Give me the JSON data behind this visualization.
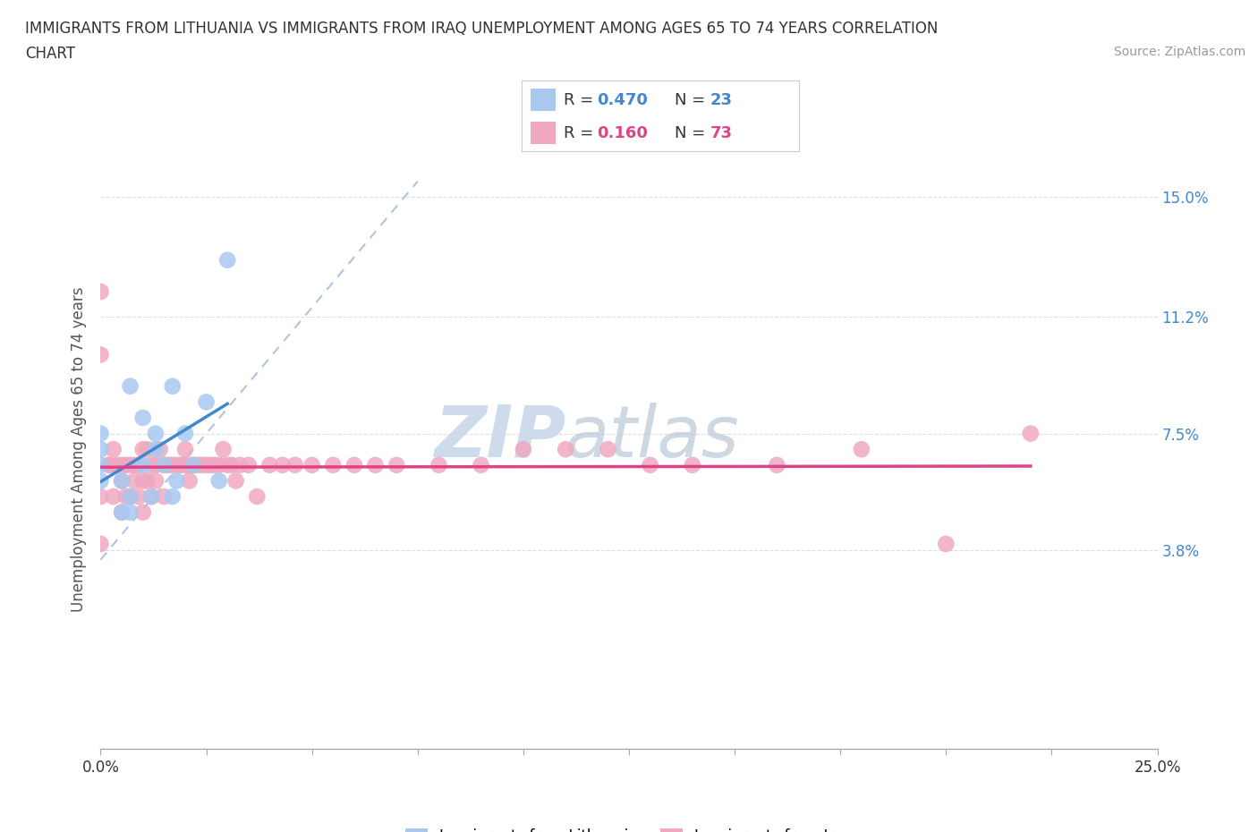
{
  "title_line1": "IMMIGRANTS FROM LITHUANIA VS IMMIGRANTS FROM IRAQ UNEMPLOYMENT AMONG AGES 65 TO 74 YEARS CORRELATION",
  "title_line2": "CHART",
  "source_text": "Source: ZipAtlas.com",
  "ylabel": "Unemployment Among Ages 65 to 74 years",
  "xlim": [
    0.0,
    0.25
  ],
  "ylim": [
    -0.025,
    0.165
  ],
  "y_tick_labels_right": [
    "3.8%",
    "7.5%",
    "11.2%",
    "15.0%"
  ],
  "y_tick_values_right": [
    0.038,
    0.075,
    0.112,
    0.15
  ],
  "R_lithuania": 0.47,
  "N_lithuania": 23,
  "R_iraq": 0.16,
  "N_iraq": 73,
  "color_lithuania": "#a8c8f0",
  "color_iraq": "#f0a8c0",
  "line_color_lithuania": "#4488cc",
  "line_color_iraq": "#dd4488",
  "diagonal_color": "#b0c4de",
  "watermark_color": "#d0dce8",
  "lithuania_points_x": [
    0.0,
    0.0,
    0.0,
    0.0,
    0.005,
    0.005,
    0.007,
    0.007,
    0.007,
    0.01,
    0.01,
    0.012,
    0.013,
    0.013,
    0.015,
    0.017,
    0.017,
    0.018,
    0.02,
    0.022,
    0.025,
    0.028,
    0.03
  ],
  "lithuania_points_y": [
    0.06,
    0.065,
    0.07,
    0.075,
    0.05,
    0.06,
    0.05,
    0.055,
    0.09,
    0.065,
    0.08,
    0.055,
    0.07,
    0.075,
    0.065,
    0.09,
    0.055,
    0.06,
    0.075,
    0.065,
    0.085,
    0.06,
    0.13
  ],
  "iraq_points_x": [
    0.0,
    0.0,
    0.0,
    0.0,
    0.002,
    0.002,
    0.003,
    0.003,
    0.004,
    0.005,
    0.005,
    0.005,
    0.006,
    0.006,
    0.007,
    0.007,
    0.008,
    0.008,
    0.009,
    0.009,
    0.01,
    0.01,
    0.01,
    0.011,
    0.011,
    0.012,
    0.012,
    0.013,
    0.013,
    0.014,
    0.015,
    0.015,
    0.016,
    0.017,
    0.018,
    0.019,
    0.02,
    0.02,
    0.021,
    0.021,
    0.022,
    0.023,
    0.024,
    0.025,
    0.026,
    0.027,
    0.028,
    0.029,
    0.03,
    0.031,
    0.032,
    0.033,
    0.035,
    0.037,
    0.04,
    0.043,
    0.046,
    0.05,
    0.055,
    0.06,
    0.065,
    0.07,
    0.08,
    0.09,
    0.1,
    0.11,
    0.12,
    0.13,
    0.14,
    0.16,
    0.18,
    0.2,
    0.22
  ],
  "iraq_points_y": [
    0.1,
    0.12,
    0.055,
    0.04,
    0.065,
    0.065,
    0.07,
    0.055,
    0.065,
    0.065,
    0.06,
    0.05,
    0.065,
    0.055,
    0.065,
    0.055,
    0.065,
    0.06,
    0.065,
    0.055,
    0.07,
    0.06,
    0.05,
    0.07,
    0.06,
    0.065,
    0.055,
    0.065,
    0.06,
    0.07,
    0.065,
    0.055,
    0.065,
    0.065,
    0.065,
    0.065,
    0.07,
    0.065,
    0.065,
    0.06,
    0.065,
    0.065,
    0.065,
    0.065,
    0.065,
    0.065,
    0.065,
    0.07,
    0.065,
    0.065,
    0.06,
    0.065,
    0.065,
    0.055,
    0.065,
    0.065,
    0.065,
    0.065,
    0.065,
    0.065,
    0.065,
    0.065,
    0.065,
    0.065,
    0.07,
    0.07,
    0.07,
    0.065,
    0.065,
    0.065,
    0.07,
    0.04,
    0.075
  ],
  "background_color": "#ffffff",
  "grid_color": "#dddddd"
}
